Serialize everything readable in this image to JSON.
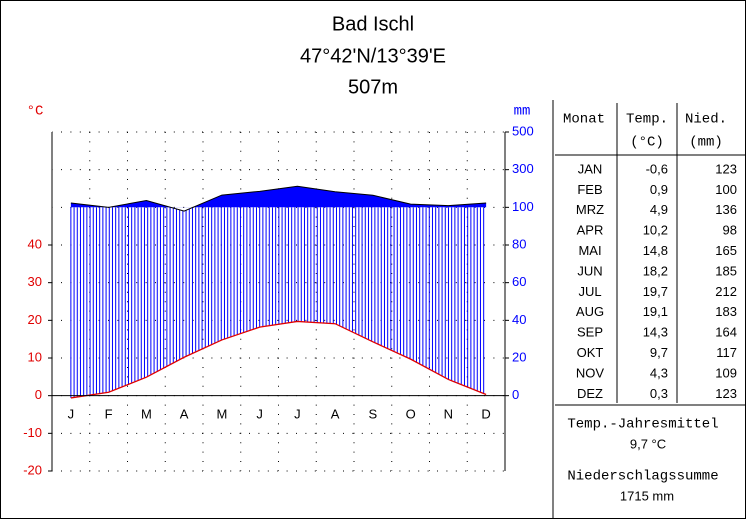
{
  "chart_data": {
    "type": "climate",
    "title": "Bad Ischl",
    "subtitle": "47°42'N/13°39'E",
    "elevation": "507m",
    "ylabel": "°C",
    "y2label": "mm",
    "categories": [
      "J",
      "F",
      "M",
      "A",
      "M",
      "J",
      "J",
      "A",
      "S",
      "O",
      "N",
      "D"
    ],
    "ylim": [
      -20,
      70
    ],
    "yticks": [
      -20,
      -10,
      0,
      10,
      20,
      30,
      40
    ],
    "y2lim": [
      0,
      500
    ],
    "y2ticks": [
      0,
      20,
      40,
      60,
      80,
      100,
      300,
      500
    ],
    "grid": true,
    "series": [
      {
        "name": "Temp.",
        "unit": "(°C)",
        "color": "#e00000",
        "values": [
          -0.6,
          0.9,
          4.9,
          10.2,
          14.8,
          18.2,
          19.7,
          19.1,
          14.3,
          9.7,
          4.3,
          0.3
        ],
        "value_labels": [
          "-0,6",
          "0,9",
          "4,9",
          "10,2",
          "14,8",
          "18,2",
          "19,7",
          "19,1",
          "14,3",
          "9,7",
          "4,3",
          "0,3"
        ]
      },
      {
        "name": "Nied.",
        "unit": "(mm)",
        "color": "#0000ff",
        "axis": "y2",
        "values": [
          123,
          100,
          136,
          98,
          165,
          185,
          212,
          183,
          164,
          117,
          109,
          123
        ]
      }
    ],
    "table": {
      "header": "Monat",
      "months": [
        "JAN",
        "FEB",
        "MRZ",
        "APR",
        "MAI",
        "JUN",
        "JUL",
        "AUG",
        "SEP",
        "OKT",
        "NOV",
        "DEZ"
      ]
    },
    "annual_mean_label": "Temp.-Jahresmittel",
    "annual_mean": "9,7 °C",
    "precip_sum_label": "Niederschlagssumme",
    "precip_sum": "1715 mm"
  }
}
